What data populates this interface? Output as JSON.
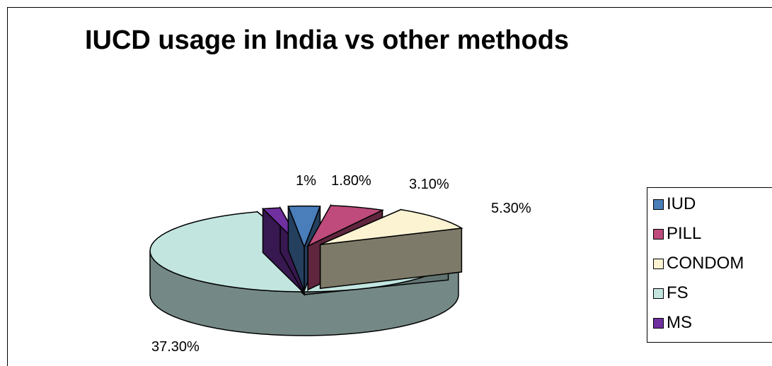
{
  "chart_data": {
    "type": "pie",
    "title": "IUCD usage in India vs other methods",
    "categories": [
      "IUD",
      "PILL",
      "CONDOM",
      "FS",
      "MS"
    ],
    "values": [
      1.8,
      3.1,
      5.3,
      37.3,
      1.0
    ],
    "data_labels": [
      "1.80%",
      "3.10%",
      "5.30%",
      "37.30%",
      "1%"
    ],
    "colors": {
      "IUD": "#4a7ebb",
      "PILL": "#be4b7b",
      "CONDOM": "#fbf3d2",
      "FS": "#c2e5e0",
      "MS": "#7030a0"
    },
    "exploded": true,
    "legend_position": "right",
    "three_d": true
  }
}
